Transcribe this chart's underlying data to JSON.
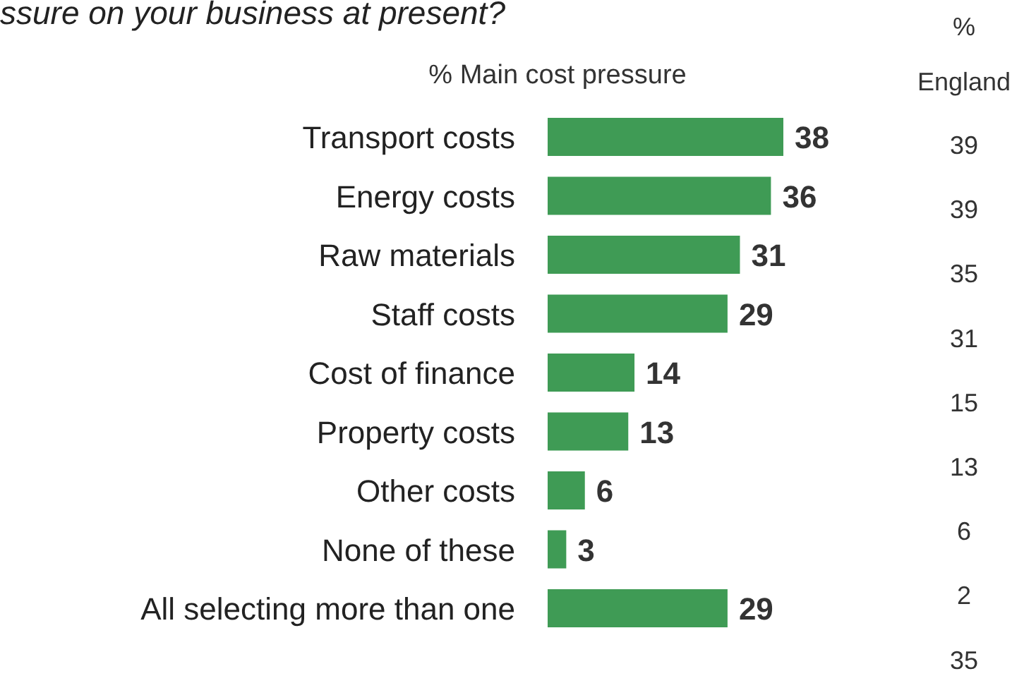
{
  "chart_data": {
    "type": "bar",
    "orientation": "horizontal",
    "title": "ssure on your business at present?",
    "xlabel": "% Main cost pressure",
    "categories": [
      "Transport costs",
      "Energy costs",
      "Raw materials",
      "Staff costs",
      "Cost of finance",
      "Property costs",
      "Other costs",
      "None of these",
      "All selecting more than one"
    ],
    "values": [
      38,
      36,
      31,
      29,
      14,
      13,
      6,
      3,
      29
    ],
    "color": "#3f9b55",
    "data_labels": true,
    "annotations": [
      "%",
      "England",
      "39",
      "39",
      "35",
      "31",
      "15",
      "13",
      "6",
      "2",
      "35"
    ]
  }
}
